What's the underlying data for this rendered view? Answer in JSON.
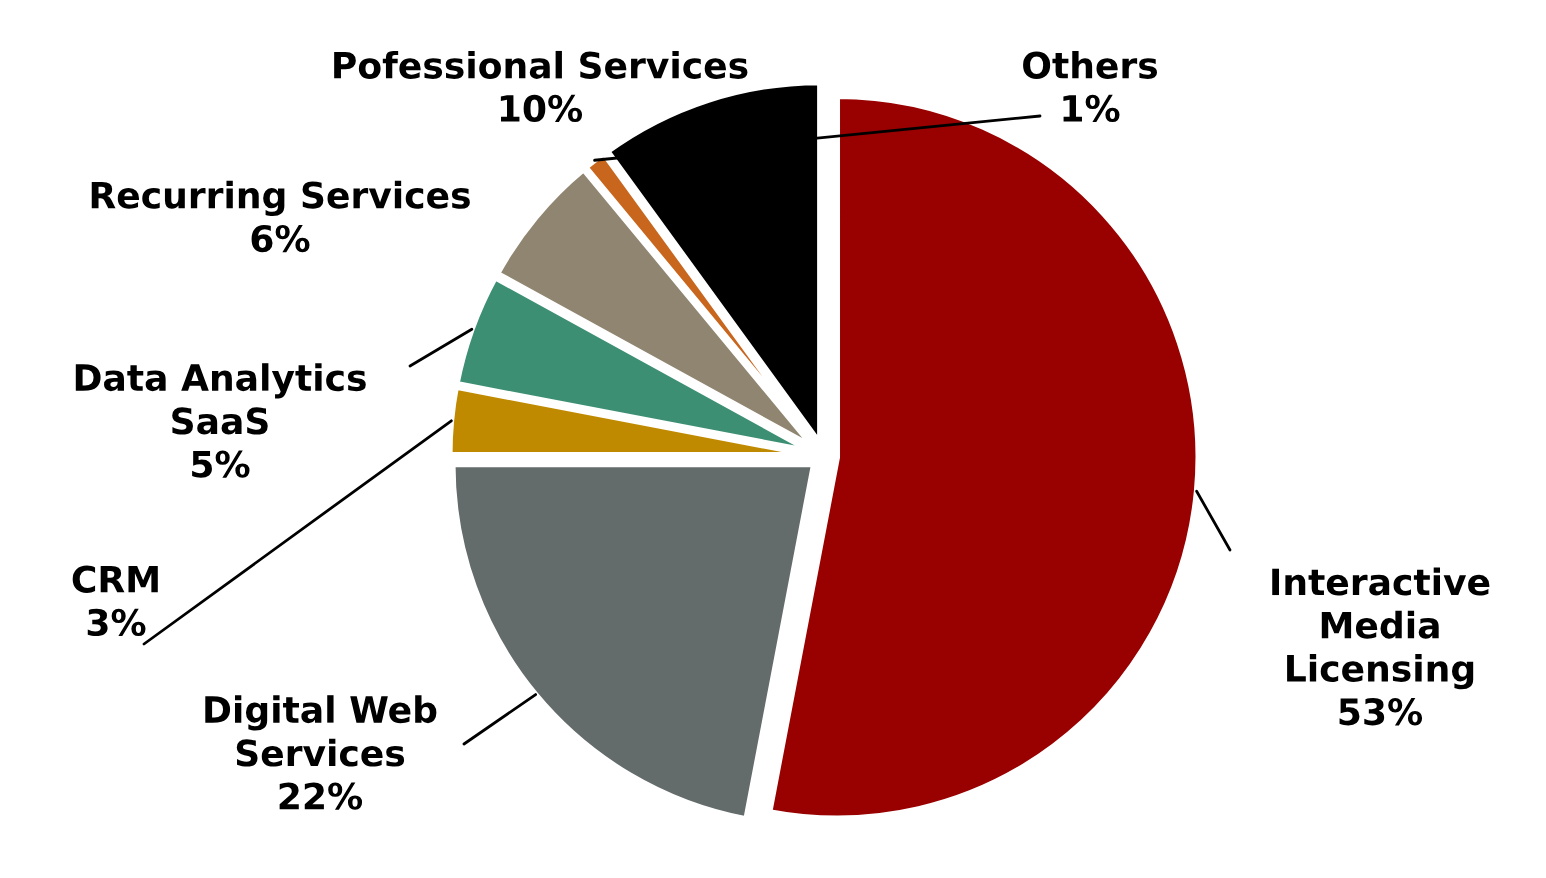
{
  "chart_data": {
    "type": "pie",
    "categories": [
      "Interactive Media Licensing",
      "Digital Web Services",
      "CRM",
      "Data Analytics SaaS",
      "Recurring Services",
      "Others",
      "Pofessional Services"
    ],
    "values": [
      53,
      22,
      3,
      5,
      6,
      1,
      10
    ],
    "value_labels": [
      "53%",
      "22%",
      "3%",
      "5%",
      "6%",
      "1%",
      "10%"
    ],
    "colors": [
      "#990000",
      "#636b6b",
      "#c08a00",
      "#3d8f73",
      "#8f8570",
      "#c8661e",
      "#000000"
    ],
    "legend": false
  }
}
